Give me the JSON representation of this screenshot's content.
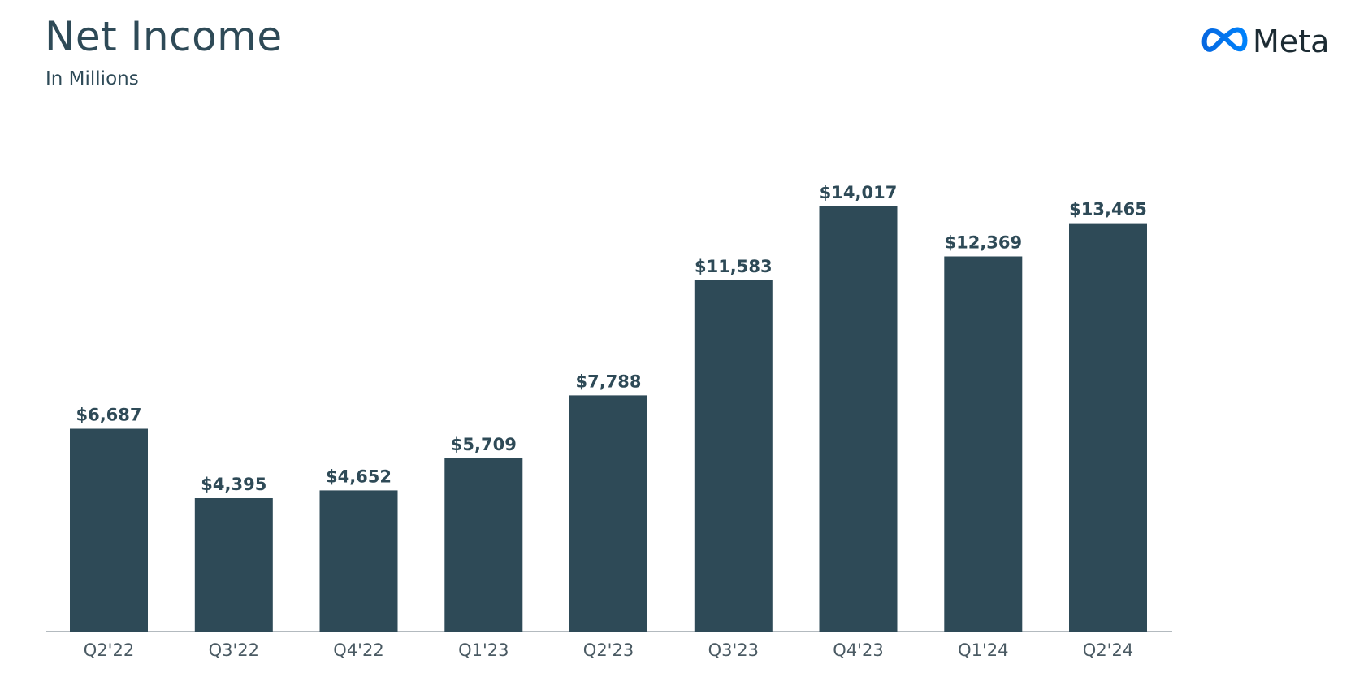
{
  "header": {
    "title": "Net Income",
    "subtitle": "In Millions"
  },
  "logo": {
    "icon": "meta-infinity-icon",
    "text": "Meta",
    "color_start": "#0668E1",
    "color_end": "#0082FB"
  },
  "colors": {
    "bar": "#2e4a57",
    "text": "#2e4a57",
    "axis": "#9aa4aa"
  },
  "chart_data": {
    "type": "bar",
    "title": "Net Income",
    "subtitle": "In Millions",
    "categories": [
      "Q2'22",
      "Q3'22",
      "Q4'22",
      "Q1'23",
      "Q2'23",
      "Q3'23",
      "Q4'23",
      "Q1'24",
      "Q2'24"
    ],
    "values": [
      6687,
      4395,
      4652,
      5709,
      7788,
      11583,
      14017,
      12369,
      13465
    ],
    "value_labels": [
      "$6,687",
      "$4,395",
      "$4,652",
      "$5,709",
      "$7,788",
      "$11,583",
      "$14,017",
      "$12,369",
      "$13,465"
    ],
    "xlabel": "",
    "ylabel": "",
    "ylim": [
      0,
      14017
    ],
    "grid": false,
    "legend": "none"
  }
}
